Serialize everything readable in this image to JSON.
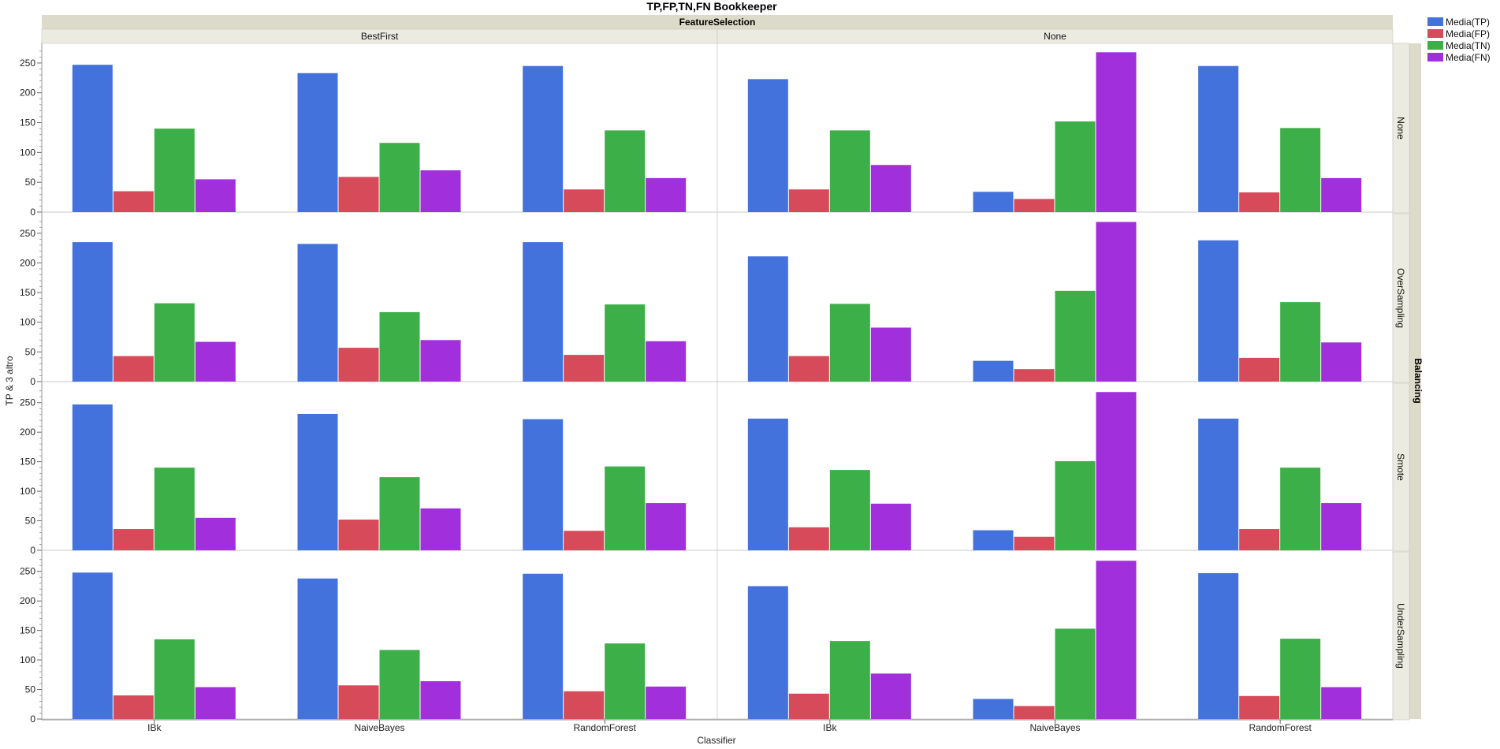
{
  "chart_data": {
    "type": "bar",
    "title": "TP,FP,TN,FN Bookkeeper",
    "column_facet_label": "FeatureSelection",
    "row_facet_label": "Balancing",
    "xlabel": "Classifier",
    "ylabel": "TP & 3 altro",
    "ylim": [
      0,
      275
    ],
    "yticks": [
      0,
      50,
      100,
      150,
      200,
      250
    ],
    "grid": false,
    "legend_position": "top-right",
    "columns": [
      "BestFirst",
      "None"
    ],
    "rows": [
      "None",
      "OverSampling",
      "Smote",
      "UnderSampling"
    ],
    "categories": [
      "IBk",
      "NaiveBayes",
      "RandomForest"
    ],
    "series": [
      {
        "name": "Media(TP)",
        "color": "#4472dc"
      },
      {
        "name": "Media(FP)",
        "color": "#d64a5a"
      },
      {
        "name": "Media(TN)",
        "color": "#3daf48"
      },
      {
        "name": "Media(FN)",
        "color": "#a12fdc"
      }
    ],
    "panels": [
      {
        "row": "None",
        "column": "BestFirst",
        "values": [
          [
            247,
            35,
            140,
            55
          ],
          [
            233,
            59,
            116,
            70
          ],
          [
            245,
            38,
            137,
            57
          ]
        ]
      },
      {
        "row": "None",
        "column": "None",
        "values": [
          [
            223,
            38,
            137,
            79
          ],
          [
            34,
            22,
            152,
            268
          ],
          [
            245,
            33,
            141,
            57
          ]
        ]
      },
      {
        "row": "OverSampling",
        "column": "BestFirst",
        "values": [
          [
            235,
            43,
            132,
            67
          ],
          [
            232,
            57,
            117,
            70
          ],
          [
            235,
            45,
            130,
            68
          ]
        ]
      },
      {
        "row": "OverSampling",
        "column": "None",
        "values": [
          [
            211,
            43,
            131,
            91
          ],
          [
            35,
            21,
            153,
            269
          ],
          [
            238,
            40,
            134,
            66
          ]
        ]
      },
      {
        "row": "Smote",
        "column": "BestFirst",
        "values": [
          [
            247,
            36,
            140,
            55
          ],
          [
            231,
            52,
            124,
            71
          ],
          [
            222,
            33,
            142,
            80
          ]
        ]
      },
      {
        "row": "Smote",
        "column": "None",
        "values": [
          [
            223,
            39,
            136,
            79
          ],
          [
            34,
            23,
            151,
            268
          ],
          [
            223,
            36,
            140,
            80
          ]
        ]
      },
      {
        "row": "UnderSampling",
        "column": "BestFirst",
        "values": [
          [
            248,
            40,
            135,
            54
          ],
          [
            238,
            57,
            117,
            64
          ],
          [
            246,
            47,
            128,
            55
          ]
        ]
      },
      {
        "row": "UnderSampling",
        "column": "None",
        "values": [
          [
            225,
            43,
            132,
            77
          ],
          [
            34,
            22,
            153,
            268
          ],
          [
            247,
            39,
            136,
            54
          ]
        ]
      }
    ]
  }
}
